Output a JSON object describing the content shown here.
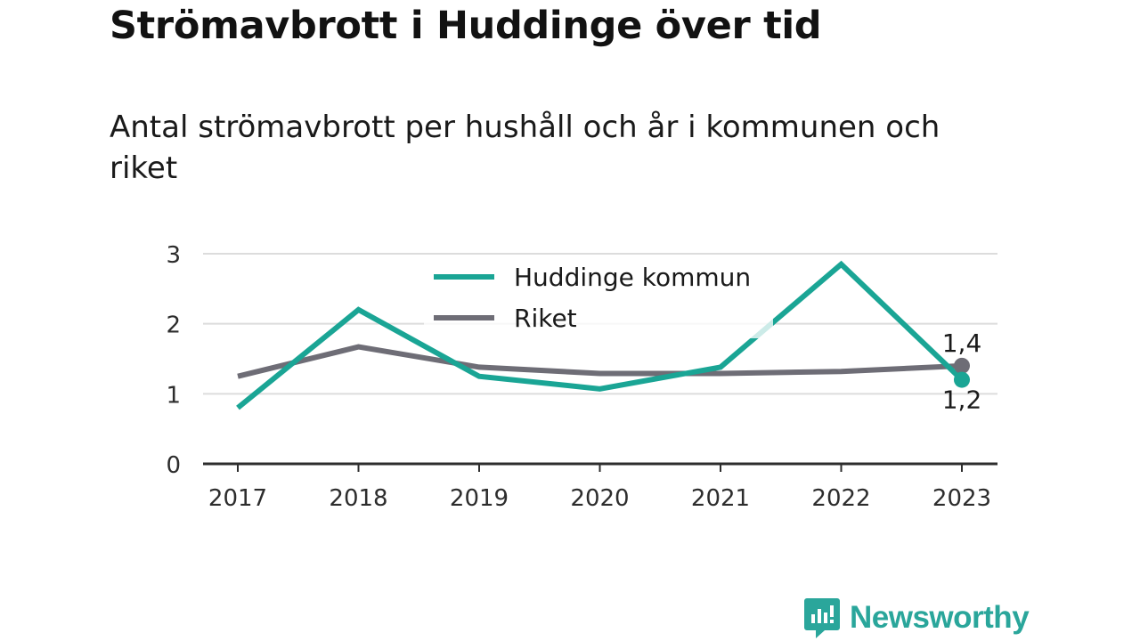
{
  "title": "Strömavbrott i Huddinge över tid",
  "subtitle": "Antal strömavbrott per hushåll och år i kommunen och riket",
  "brand": {
    "name": "Newsworthy",
    "icon": "newsworthy-logo-icon",
    "color": "#2aa69b"
  },
  "chart_data": {
    "type": "line",
    "x": [
      "2017",
      "2018",
      "2019",
      "2020",
      "2021",
      "2022",
      "2023"
    ],
    "series": [
      {
        "name": "Huddinge kommun",
        "color": "#1aa595",
        "values": [
          0.8,
          2.2,
          1.25,
          1.07,
          1.38,
          2.85,
          1.2
        ]
      },
      {
        "name": "Riket",
        "color": "#6e6d76",
        "values": [
          1.25,
          1.67,
          1.38,
          1.29,
          1.29,
          1.32,
          1.4
        ]
      }
    ],
    "ylim": [
      0,
      3
    ],
    "yticks": [
      "0",
      "1",
      "2",
      "3"
    ],
    "end_labels": {
      "Huddinge kommun": "1,2",
      "Riket": "1,4"
    },
    "grid": true,
    "legend": "top-center"
  }
}
